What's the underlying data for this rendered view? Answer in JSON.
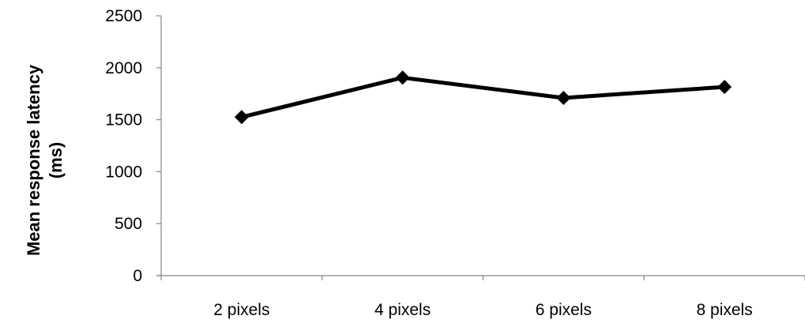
{
  "chart_data": {
    "type": "line",
    "title": "",
    "xlabel": "",
    "ylabel": "Mean response latency (ms)",
    "ylabel_lines": [
      "Mean response latency",
      "(ms)"
    ],
    "categories": [
      "2 pixels",
      "4 pixels",
      "6 pixels",
      "8 pixels"
    ],
    "series": [
      {
        "values": [
          1525,
          1905,
          1710,
          1815
        ],
        "color": "#000000",
        "marker": "diamond"
      }
    ],
    "ylim": [
      0,
      2500
    ],
    "yticks": [
      0,
      500,
      1000,
      1500,
      2000,
      2500
    ],
    "grid": false,
    "legend": "none"
  }
}
